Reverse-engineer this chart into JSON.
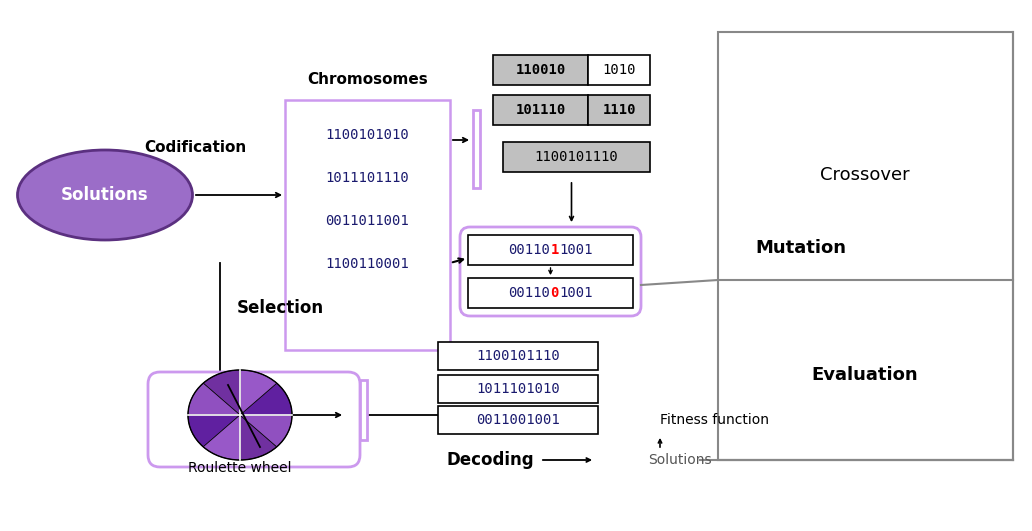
{
  "bg": "#ffffff",
  "purple_fill": "#A070C8",
  "purple_dark": "#5B3080",
  "purple_border": "#CC99EE",
  "gray_fill": "#C0C0C0",
  "chromosomes": [
    "1100101010",
    "1011101110",
    "0011011001",
    "1100110001"
  ],
  "co_row1_left": "110010",
  "co_row1_right": "1010",
  "co_row2_left": "101110",
  "co_row2_right": "1110",
  "co_row3": "1100101110",
  "mut1_pre": "00110",
  "mut1_red": "1",
  "mut1_suf": "1001",
  "mut2_pre": "00110",
  "mut2_red": "0",
  "mut2_suf": "1001",
  "dec_lines": [
    "1100101110",
    "1011101010",
    "0011001001"
  ],
  "text_blue": "#1a1a6e",
  "solutions_text_color": "#4a1a7e"
}
